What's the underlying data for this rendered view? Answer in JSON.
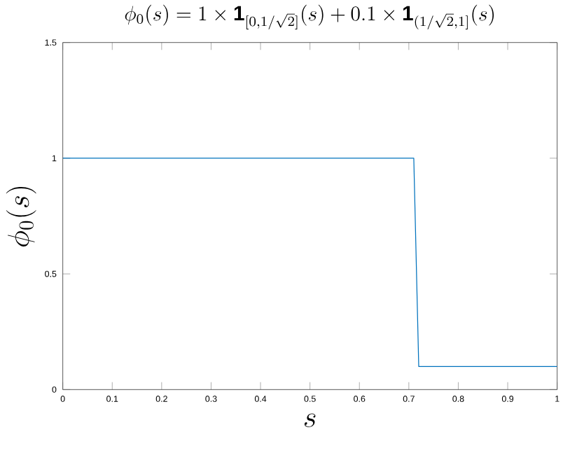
{
  "chart_data": {
    "type": "line",
    "title": "\\phi_0(s) = 1 \\times \\mathbf{1}_{[0,1/\\sqrt{2}]}(s) + 0.1 \\times \\mathbf{1}_{(1/\\sqrt{2},1]}(s)",
    "xlabel": "s",
    "ylabel": "\\phi_0(s)",
    "x": [
      0,
      0.71,
      0.72,
      1
    ],
    "series": [
      {
        "color": "#0072bd",
        "values": [
          1,
          1,
          0.1,
          0.1
        ]
      }
    ],
    "xlim": [
      0,
      1
    ],
    "ylim": [
      0,
      1.5
    ],
    "xticks": [
      0,
      0.1,
      0.2,
      0.3,
      0.4,
      0.5,
      0.6,
      0.7,
      0.8,
      0.9,
      1
    ],
    "yticks": [
      0,
      0.5,
      1,
      1.5
    ],
    "grid": false,
    "marker": "none",
    "line_style": "solid"
  }
}
